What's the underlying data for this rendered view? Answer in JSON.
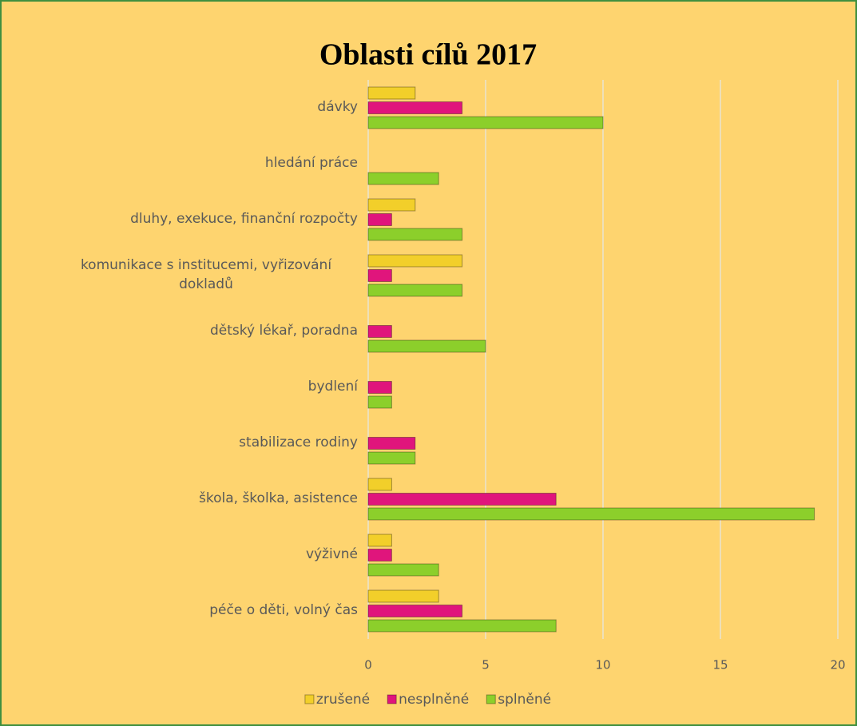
{
  "chart_data": {
    "type": "bar",
    "orientation": "horizontal",
    "title": "Oblasti cílů 2017",
    "categories": [
      "dávky",
      "hledání práce",
      "dluhy, exekuce, finanční rozpočty",
      "komunikace s institucemi, vyřizování dokladů",
      "dětský lékař, poradna",
      "bydlení",
      "stabilizace rodiny",
      "škola, školka, asistence",
      "výživné",
      "péče o děti, volný čas"
    ],
    "series": [
      {
        "name": "zrušené",
        "color": "#f2cf2a",
        "values": [
          2,
          0,
          2,
          4,
          0,
          0,
          0,
          1,
          1,
          3
        ]
      },
      {
        "name": "nesplněné",
        "color": "#e0157c",
        "values": [
          4,
          0,
          1,
          1,
          1,
          1,
          2,
          8,
          1,
          4
        ]
      },
      {
        "name": "splněné",
        "color": "#8ccf2b",
        "values": [
          10,
          3,
          4,
          4,
          5,
          1,
          2,
          19,
          3,
          8
        ]
      }
    ],
    "xlim": [
      0,
      20
    ],
    "xticks": [
      0,
      5,
      10,
      15,
      20
    ],
    "grid": true,
    "legend": "bottom"
  }
}
